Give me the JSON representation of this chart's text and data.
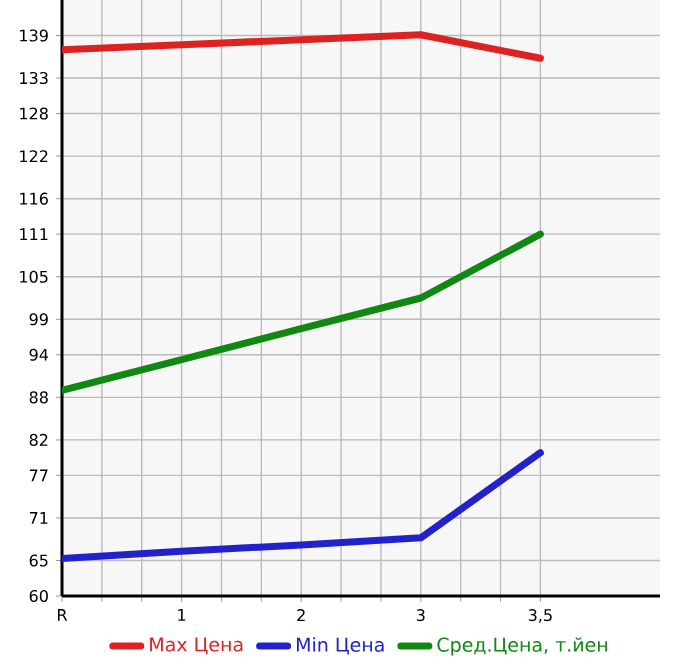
{
  "chart_data": {
    "type": "line",
    "categories": [
      "R",
      "1",
      "2",
      "3",
      "3,5"
    ],
    "series": [
      {
        "name": "Max Цена",
        "color": "#dd2222",
        "values": [
          137.0,
          137.7,
          138.4,
          139.1,
          135.8
        ]
      },
      {
        "name": "Min Цена",
        "color": "#2222cc",
        "values": [
          65.3,
          66.3,
          67.2,
          68.2,
          80.2
        ]
      },
      {
        "name": "Сред.Цена, т.йен",
        "color": "#118811",
        "values": [
          89.0,
          93.3,
          97.7,
          102.0,
          111.0
        ]
      }
    ],
    "ylim": [
      60,
      144
    ],
    "yticks": [
      60,
      65,
      71,
      77,
      82,
      88,
      94,
      99,
      105,
      111,
      116,
      122,
      128,
      133,
      139
    ],
    "grid": true,
    "legend": "bottom",
    "marker": "none",
    "line_style": "solid"
  }
}
